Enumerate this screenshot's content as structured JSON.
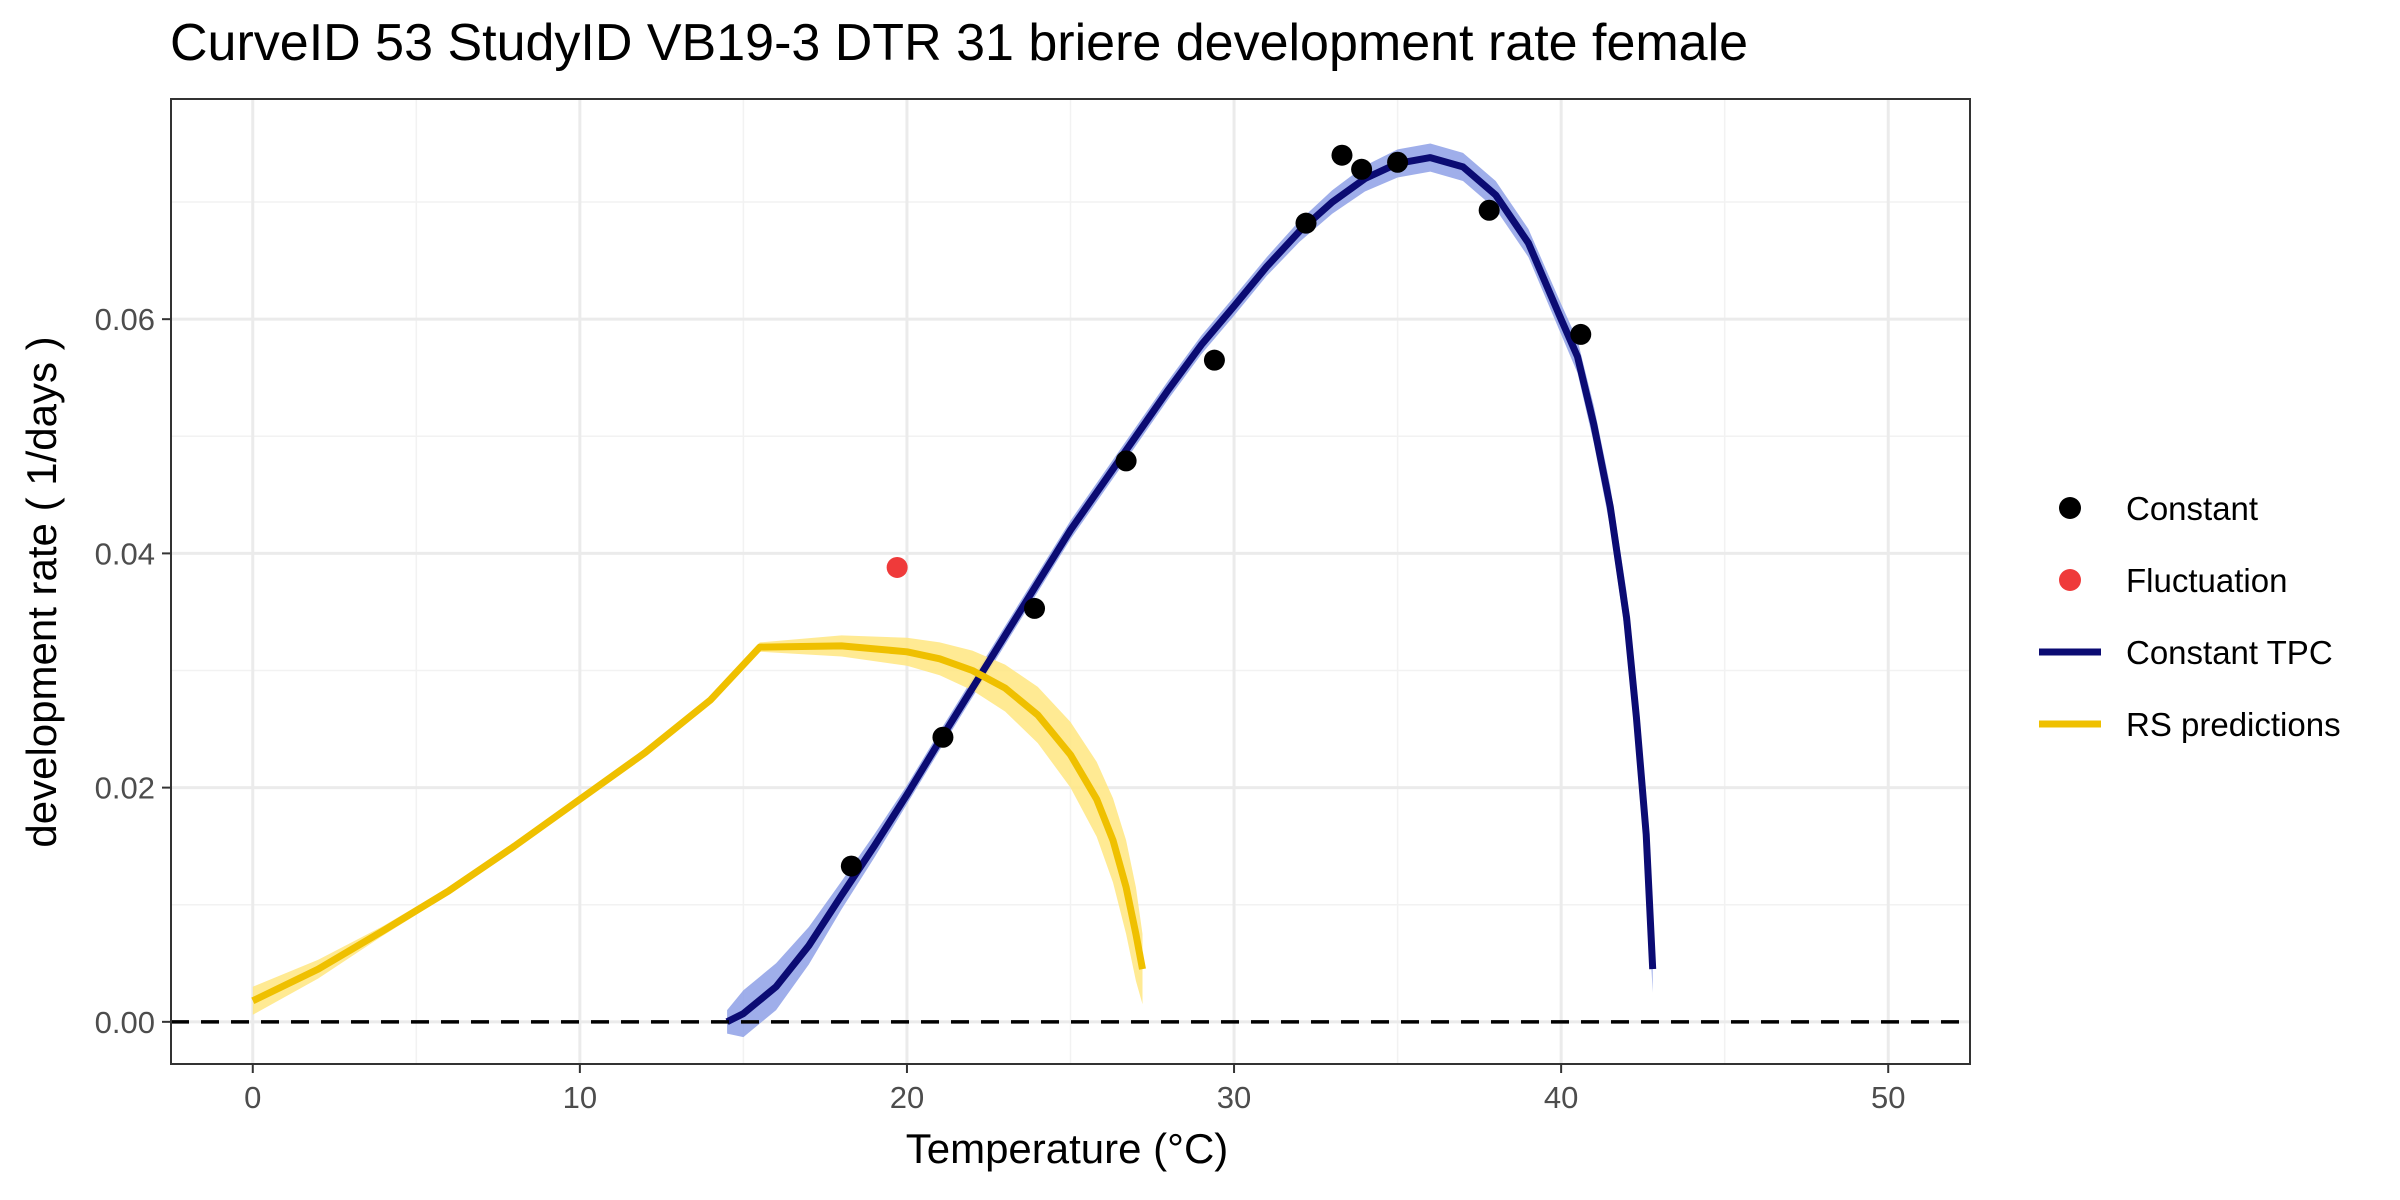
{
  "chart_data": {
    "type": "line",
    "title": "CurveID 53 StudyID VB19-3 DTR 31 briere development rate female",
    "xlabel": "Temperature (°C)",
    "ylabel": "development rate ( 1/days )",
    "xlim": [
      -2.5,
      52.5
    ],
    "ylim": [
      -0.0036,
      0.0788
    ],
    "x_ticks": [
      0,
      10,
      20,
      30,
      40,
      50
    ],
    "x_tick_labels": [
      "0",
      "10",
      "20",
      "30",
      "40",
      "50"
    ],
    "y_ticks": [
      0.0,
      0.02,
      0.04,
      0.06
    ],
    "y_tick_labels": [
      "0.00",
      "0.02",
      "0.04",
      "0.06"
    ],
    "grid": true,
    "reference_line": {
      "y": 0,
      "style": "dashed"
    },
    "legend_position": "right",
    "legend": [
      {
        "label": "Constant",
        "kind": "point",
        "color": "#000000"
      },
      {
        "label": "Fluctuation",
        "kind": "point",
        "color": "#ef3a3a"
      },
      {
        "label": "Constant TPC",
        "kind": "line",
        "color": "#0b0b73"
      },
      {
        "label": "RS predictions",
        "kind": "line",
        "color": "#efc000"
      }
    ],
    "series": [
      {
        "name": "Constant",
        "type": "scatter",
        "color": "#000000",
        "points": [
          [
            18.3,
            0.0133
          ],
          [
            21.1,
            0.0243
          ],
          [
            23.9,
            0.0353
          ],
          [
            26.7,
            0.0479
          ],
          [
            29.4,
            0.0565
          ],
          [
            32.2,
            0.0682
          ],
          [
            33.3,
            0.074
          ],
          [
            33.9,
            0.0728
          ],
          [
            35.0,
            0.0734
          ],
          [
            37.8,
            0.0693
          ],
          [
            40.6,
            0.0587
          ]
        ]
      },
      {
        "name": "Fluctuation",
        "type": "scatter",
        "color": "#ef3a3a",
        "points": [
          [
            19.7,
            0.0388
          ]
        ]
      },
      {
        "name": "Constant TPC",
        "type": "line",
        "color": "#0b0b73",
        "band_color": "#8ea0e6",
        "points": [
          [
            14.5,
            0.0
          ],
          [
            15.0,
            0.0007
          ],
          [
            16.0,
            0.003
          ],
          [
            17.0,
            0.0065
          ],
          [
            18.0,
            0.0108
          ],
          [
            19.0,
            0.015
          ],
          [
            20.0,
            0.0194
          ],
          [
            21.0,
            0.024
          ],
          [
            22.0,
            0.0285
          ],
          [
            23.0,
            0.033
          ],
          [
            24.0,
            0.0375
          ],
          [
            25.0,
            0.042
          ],
          [
            26.0,
            0.046
          ],
          [
            27.0,
            0.05
          ],
          [
            28.0,
            0.054
          ],
          [
            29.0,
            0.0578
          ],
          [
            30.0,
            0.0611
          ],
          [
            31.0,
            0.0645
          ],
          [
            32.0,
            0.0675
          ],
          [
            33.0,
            0.07
          ],
          [
            34.0,
            0.072
          ],
          [
            35.0,
            0.0733
          ],
          [
            36.0,
            0.0738
          ],
          [
            37.0,
            0.073
          ],
          [
            38.0,
            0.0706
          ],
          [
            39.0,
            0.0665
          ],
          [
            40.0,
            0.06
          ],
          [
            40.5,
            0.0568
          ],
          [
            41.0,
            0.051
          ],
          [
            41.5,
            0.044
          ],
          [
            42.0,
            0.0345
          ],
          [
            42.3,
            0.026
          ],
          [
            42.6,
            0.016
          ],
          [
            42.8,
            0.0045
          ]
        ],
        "band_width": [
          0.001,
          0.002,
          0.002,
          0.0016,
          0.0012,
          0.001,
          0.0008,
          0.0008,
          0.0008,
          0.0008,
          0.0008,
          0.0008,
          0.0008,
          0.0008,
          0.0008,
          0.0008,
          0.0008,
          0.0008,
          0.0009,
          0.001,
          0.0011,
          0.0012,
          0.0012,
          0.0012,
          0.0012,
          0.0012,
          0.0013,
          0.0014,
          0.0016,
          0.0018,
          0.0022,
          0.0026,
          0.003,
          0.002
        ]
      },
      {
        "name": "RS predictions",
        "type": "line",
        "color": "#efc000",
        "band_color": "#ffe680",
        "points": [
          [
            0.0,
            0.0018
          ],
          [
            2.0,
            0.0045
          ],
          [
            4.0,
            0.0078
          ],
          [
            6.0,
            0.0112
          ],
          [
            8.0,
            0.015
          ],
          [
            10.0,
            0.019
          ],
          [
            12.0,
            0.023
          ],
          [
            14.0,
            0.0275
          ],
          [
            15.5,
            0.032
          ],
          [
            18.0,
            0.0321
          ],
          [
            20.0,
            0.0316
          ],
          [
            21.0,
            0.031
          ],
          [
            22.0,
            0.03
          ],
          [
            23.0,
            0.0285
          ],
          [
            24.0,
            0.0262
          ],
          [
            25.0,
            0.0228
          ],
          [
            25.8,
            0.019
          ],
          [
            26.3,
            0.0155
          ],
          [
            26.7,
            0.0115
          ],
          [
            27.0,
            0.0075
          ],
          [
            27.2,
            0.0045
          ]
        ],
        "band_width": [
          0.0012,
          0.0008,
          0.0004,
          0.0003,
          0.0002,
          0.0002,
          0.0002,
          0.0003,
          0.0004,
          0.0009,
          0.0012,
          0.0014,
          0.0017,
          0.002,
          0.0024,
          0.0028,
          0.0032,
          0.0036,
          0.004,
          0.004,
          0.003
        ]
      }
    ]
  }
}
